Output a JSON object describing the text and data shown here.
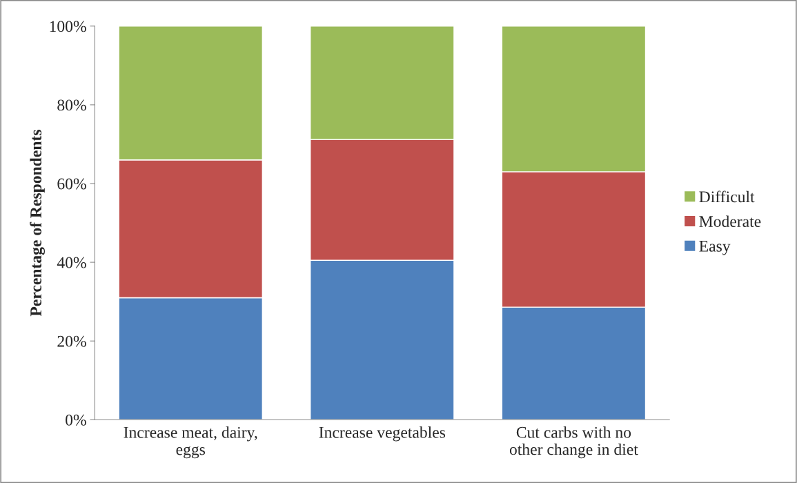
{
  "chart_data": {
    "type": "bar",
    "stacked": true,
    "ylabel": "Percentage of Respondents",
    "categories": [
      "Increase meat, dairy, eggs",
      "Increase vegetables",
      "Cut carbs with no other change in diet"
    ],
    "series": [
      {
        "name": "Easy",
        "color": "#4f81bd",
        "values": [
          31,
          40.5,
          28.6
        ]
      },
      {
        "name": "Moderate",
        "color": "#c0504d",
        "values": [
          35,
          30.7,
          34.4
        ]
      },
      {
        "name": "Difficult",
        "color": "#9bbb59",
        "values": [
          34,
          28.8,
          37.0
        ]
      }
    ],
    "ylim": [
      0,
      100
    ],
    "yticks": [
      {
        "value": 0,
        "label": "0%"
      },
      {
        "value": 20,
        "label": "20%"
      },
      {
        "value": 40,
        "label": "40%"
      },
      {
        "value": 60,
        "label": "60%"
      },
      {
        "value": 80,
        "label": "80%"
      },
      {
        "value": 100,
        "label": "100%"
      }
    ],
    "grid": false,
    "legend": "right"
  }
}
